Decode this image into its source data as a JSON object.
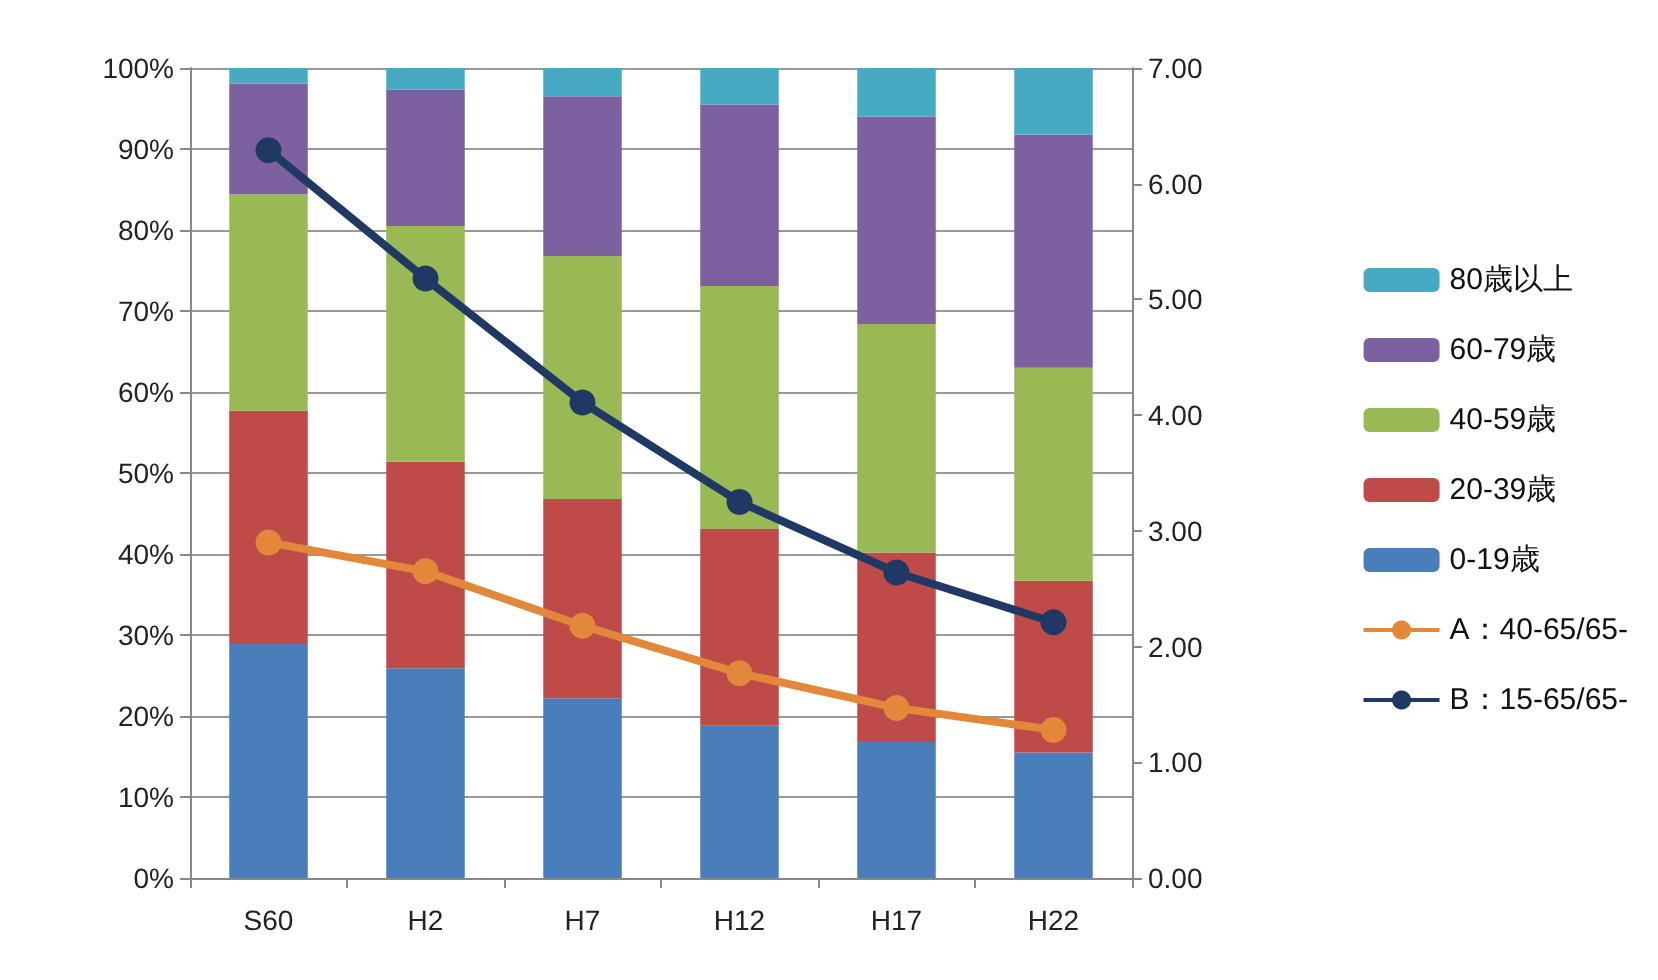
{
  "chart_data": {
    "type": "bar",
    "stacked": true,
    "categories": [
      "S60",
      "H2",
      "H7",
      "H12",
      "H17",
      "H22"
    ],
    "series": [
      {
        "name": "0-19歳",
        "color": "#4a7ebb",
        "values": [
          28.9,
          25.9,
          22.2,
          18.8,
          16.8,
          15.5
        ]
      },
      {
        "name": "20-39歳",
        "color": "#be4b48",
        "values": [
          28.8,
          25.5,
          24.6,
          24.3,
          23.4,
          21.2
        ]
      },
      {
        "name": "40-59歳",
        "color": "#98b954",
        "values": [
          26.7,
          29.1,
          30.0,
          30.0,
          28.2,
          26.3
        ]
      },
      {
        "name": "60-79歳",
        "color": "#7d60a0",
        "values": [
          13.7,
          16.8,
          19.7,
          22.4,
          25.6,
          28.8
        ]
      },
      {
        "name": "80歳以上",
        "color": "#46aac5",
        "values": [
          1.9,
          2.7,
          3.5,
          4.5,
          6.0,
          8.2
        ]
      },
      {
        "name": "A：40-65/65-",
        "type": "line",
        "axis": "y2",
        "color": "#e3883a",
        "values": [
          2.9,
          2.65,
          2.18,
          1.77,
          1.47,
          1.28
        ]
      },
      {
        "name": "B：15-65/65-",
        "type": "line",
        "axis": "y2",
        "color": "#1f3864",
        "values": [
          6.29,
          5.18,
          4.11,
          3.25,
          2.64,
          2.21
        ]
      }
    ],
    "ylim": [
      0,
      100
    ],
    "yticks": [
      {
        "value": 0,
        "label": "0%"
      },
      {
        "value": 10,
        "label": "10%"
      },
      {
        "value": 20,
        "label": "20%"
      },
      {
        "value": 30,
        "label": "30%"
      },
      {
        "value": 40,
        "label": "40%"
      },
      {
        "value": 50,
        "label": "50%"
      },
      {
        "value": 60,
        "label": "60%"
      },
      {
        "value": 70,
        "label": "70%"
      },
      {
        "value": 80,
        "label": "80%"
      },
      {
        "value": 90,
        "label": "90%"
      },
      {
        "value": 100,
        "label": "100%"
      }
    ],
    "y2lim": [
      0,
      7
    ],
    "y2ticks": [
      {
        "value": 0,
        "label": "0.00"
      },
      {
        "value": 1,
        "label": "1.00"
      },
      {
        "value": 2,
        "label": "2.00"
      },
      {
        "value": 3,
        "label": "3.00"
      },
      {
        "value": 4,
        "label": "4.00"
      },
      {
        "value": 5,
        "label": "5.00"
      },
      {
        "value": 6,
        "label": "6.00"
      },
      {
        "value": 7,
        "label": "7.00"
      }
    ],
    "grid": "y",
    "legend": "right",
    "marker": "circle",
    "line_style": "solid"
  }
}
